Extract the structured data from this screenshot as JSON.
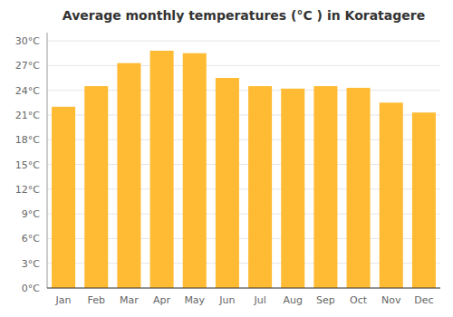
{
  "chart_data": {
    "type": "bar",
    "title": "Average monthly temperatures (°C ) in Koratagere",
    "categories": [
      "Jan",
      "Feb",
      "Mar",
      "Apr",
      "May",
      "Jun",
      "Jul",
      "Aug",
      "Sep",
      "Oct",
      "Nov",
      "Dec"
    ],
    "values": [
      22.0,
      24.5,
      27.3,
      28.8,
      28.5,
      25.5,
      24.5,
      24.2,
      24.5,
      24.3,
      22.5,
      21.3
    ],
    "color": "#FFBB33",
    "ylim": [
      0,
      31
    ],
    "yticks": [
      {
        "value": 0,
        "label": "0°C"
      },
      {
        "value": 3,
        "label": "3°C"
      },
      {
        "value": 6,
        "label": "6°C"
      },
      {
        "value": 9,
        "label": "9°C"
      },
      {
        "value": 12,
        "label": "12°C"
      },
      {
        "value": 15,
        "label": "15°C"
      },
      {
        "value": 18,
        "label": "18°C"
      },
      {
        "value": 21,
        "label": "21°C"
      },
      {
        "value": 24,
        "label": "24°C"
      },
      {
        "value": 27,
        "label": "27°C"
      },
      {
        "value": 30,
        "label": "30°C"
      }
    ],
    "grid": true
  }
}
